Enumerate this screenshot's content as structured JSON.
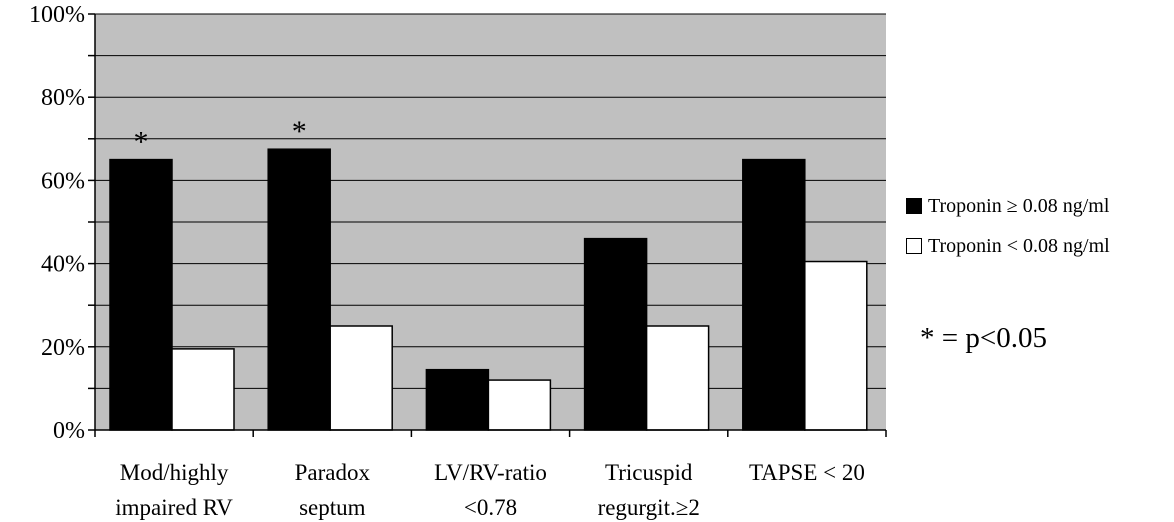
{
  "chart_data": {
    "type": "bar",
    "categories": [
      [
        "Mod/highly",
        "impaired RV"
      ],
      [
        "Paradox",
        "septum"
      ],
      [
        "LV/RV-ratio",
        "<0.78"
      ],
      [
        "Tricuspid",
        "regurgit.≥2"
      ],
      [
        "TAPSE < 20"
      ]
    ],
    "series": [
      {
        "name": "Troponin ≥ 0.08 ng/ml",
        "color": "#000000",
        "values": [
          65,
          67.5,
          14.5,
          46,
          65
        ]
      },
      {
        "name": "Troponin < 0.08 ng/ml",
        "color": "#ffffff",
        "values": [
          19.5,
          25,
          12,
          25,
          40.5
        ]
      }
    ],
    "ylim": [
      0,
      100
    ],
    "y_ticks": [
      "0%",
      "20%",
      "40%",
      "60%",
      "80%",
      "100%"
    ],
    "annotations": [
      {
        "category_index": 0,
        "text": "*"
      },
      {
        "category_index": 1,
        "text": "*"
      }
    ],
    "plot_background": "#c0c0c0",
    "grid": true,
    "legend_position": "right"
  },
  "note": "* = p<0.05"
}
